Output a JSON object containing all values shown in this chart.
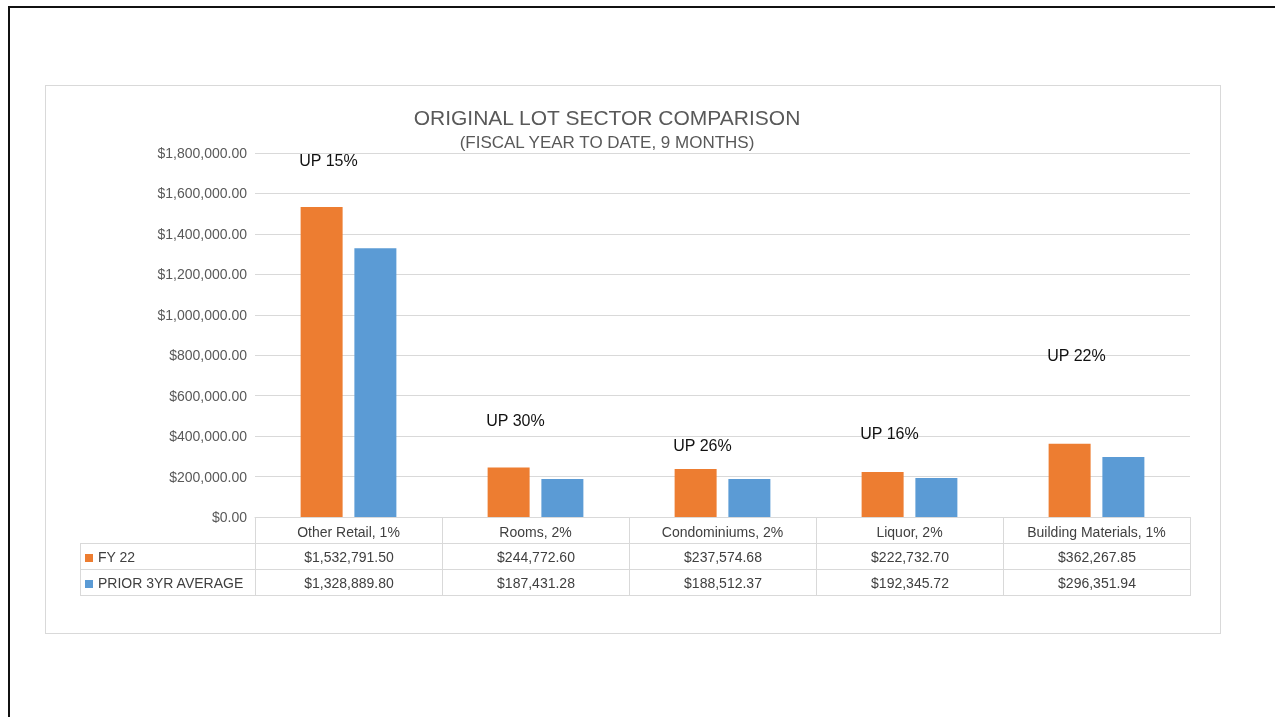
{
  "chart_data": {
    "type": "bar",
    "title": "ORIGINAL LOT SECTOR COMPARISON",
    "subtitle": "(FISCAL YEAR TO DATE, 9 MONTHS)",
    "categories": [
      "Other Retail, 1%",
      "Rooms, 2%",
      "Condominiums, 2%",
      "Liquor, 2%",
      "Building Materials, 1%"
    ],
    "series": [
      {
        "name": "FY 22",
        "color": "#ed7d31",
        "values": [
          1532791.5,
          244772.6,
          237574.68,
          222732.7,
          362267.85
        ],
        "value_labels": [
          "$1,532,791.50",
          "$244,772.60",
          "$237,574.68",
          "$222,732.70",
          "$362,267.85"
        ]
      },
      {
        "name": "PRIOR 3YR AVERAGE",
        "color": "#5b9bd5",
        "values": [
          1328889.8,
          187431.28,
          188512.37,
          192345.72,
          296351.94
        ],
        "value_labels": [
          "$1,328,889.80",
          "$187,431.28",
          "$188,512.37",
          "$192,345.72",
          "$296,351.94"
        ]
      }
    ],
    "ylim": [
      0,
      1800000
    ],
    "yticks": [
      {
        "value": 0,
        "label": "$0.00"
      },
      {
        "value": 200000,
        "label": "$200,000.00"
      },
      {
        "value": 400000,
        "label": "$400,000.00"
      },
      {
        "value": 600000,
        "label": "$600,000.00"
      },
      {
        "value": 800000,
        "label": "$800,000.00"
      },
      {
        "value": 1000000,
        "label": "$1,000,000.00"
      },
      {
        "value": 1200000,
        "label": "$1,200,000.00"
      },
      {
        "value": 1400000,
        "label": "$1,400,000.00"
      },
      {
        "value": 1600000,
        "label": "$1,600,000.00"
      },
      {
        "value": 1800000,
        "label": "$1,800,000.00"
      }
    ],
    "grid": "y",
    "legend": "bottom",
    "annotations": [
      "UP 15%",
      "UP 30%",
      "UP 26%",
      "UP 16%",
      "UP 22%"
    ]
  }
}
